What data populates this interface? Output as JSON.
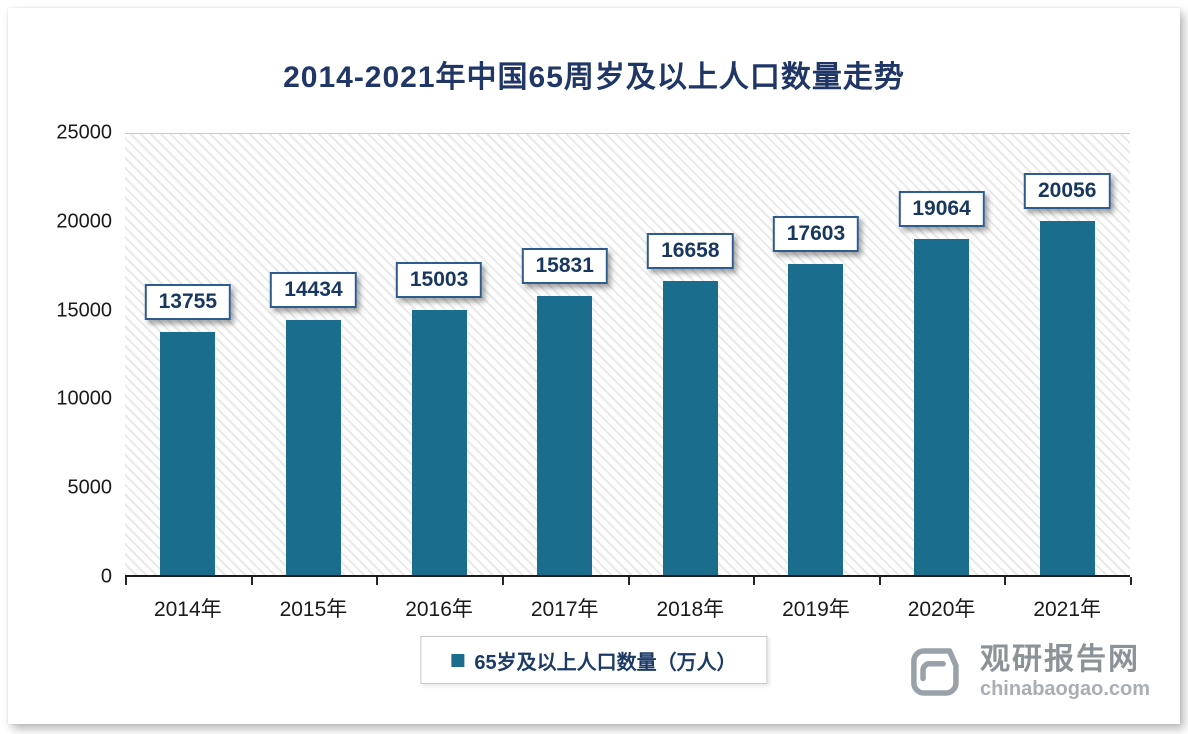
{
  "chart": {
    "bar_color": "#1b6d8d",
    "title_color": "#1f3666"
  },
  "chart_data": {
    "type": "bar",
    "title": "2014-2021年中国65周岁及以上人口数量走势",
    "categories": [
      "2014年",
      "2015年",
      "2016年",
      "2017年",
      "2018年",
      "2019年",
      "2020年",
      "2021年"
    ],
    "values": [
      13755,
      14434,
      15003,
      15831,
      16658,
      17603,
      19064,
      20056
    ],
    "xlabel": "",
    "ylabel": "",
    "ylim": [
      0,
      25000
    ],
    "yticks": [
      0,
      5000,
      10000,
      15000,
      20000,
      25000
    ],
    "legend": [
      "65岁及以上人口数量（万人）"
    ],
    "legend_position": "bottom",
    "grid": false,
    "data_labels": true
  },
  "watermark": {
    "name": "观研报告网",
    "domain": "chinabaogao.com"
  }
}
